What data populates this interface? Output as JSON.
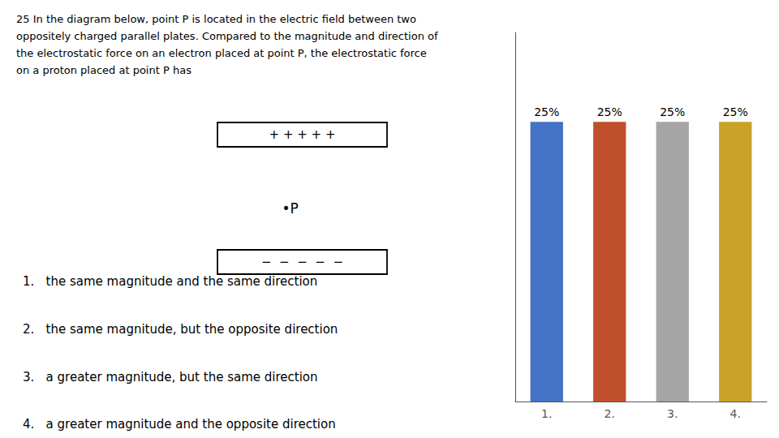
{
  "chart_data": {
    "type": "bar",
    "title": "25 In the diagram below, point P is located in the electric field between two\noppositely charged parallel plates. Compared to the magnitude and direction of\nthe electrostatic force on an electron placed at point P, the electrostatic force\non a proton placed at point P has",
    "categories": [
      "1.",
      "2.",
      "3.",
      "4."
    ],
    "values": [
      25,
      25,
      25,
      25
    ],
    "value_labels": [
      "25%",
      "25%",
      "25%",
      "25%"
    ],
    "data_labels": true,
    "colors": [
      "#4472C4",
      "#C0502B",
      "#A5A5A5",
      "#C9A227"
    ],
    "ylim": [
      0,
      33
    ],
    "tick_labels": "x",
    "grid": false,
    "annotations": [
      "+ + + + +",
      "•P",
      "−  −  −  −  −",
      "1.   the same magnitude and the same direction",
      "2.   the same magnitude, but the opposite direction",
      "3.   a greater magnitude, but the same direction",
      "4.   a greater magnitude and the opposite direction"
    ]
  }
}
